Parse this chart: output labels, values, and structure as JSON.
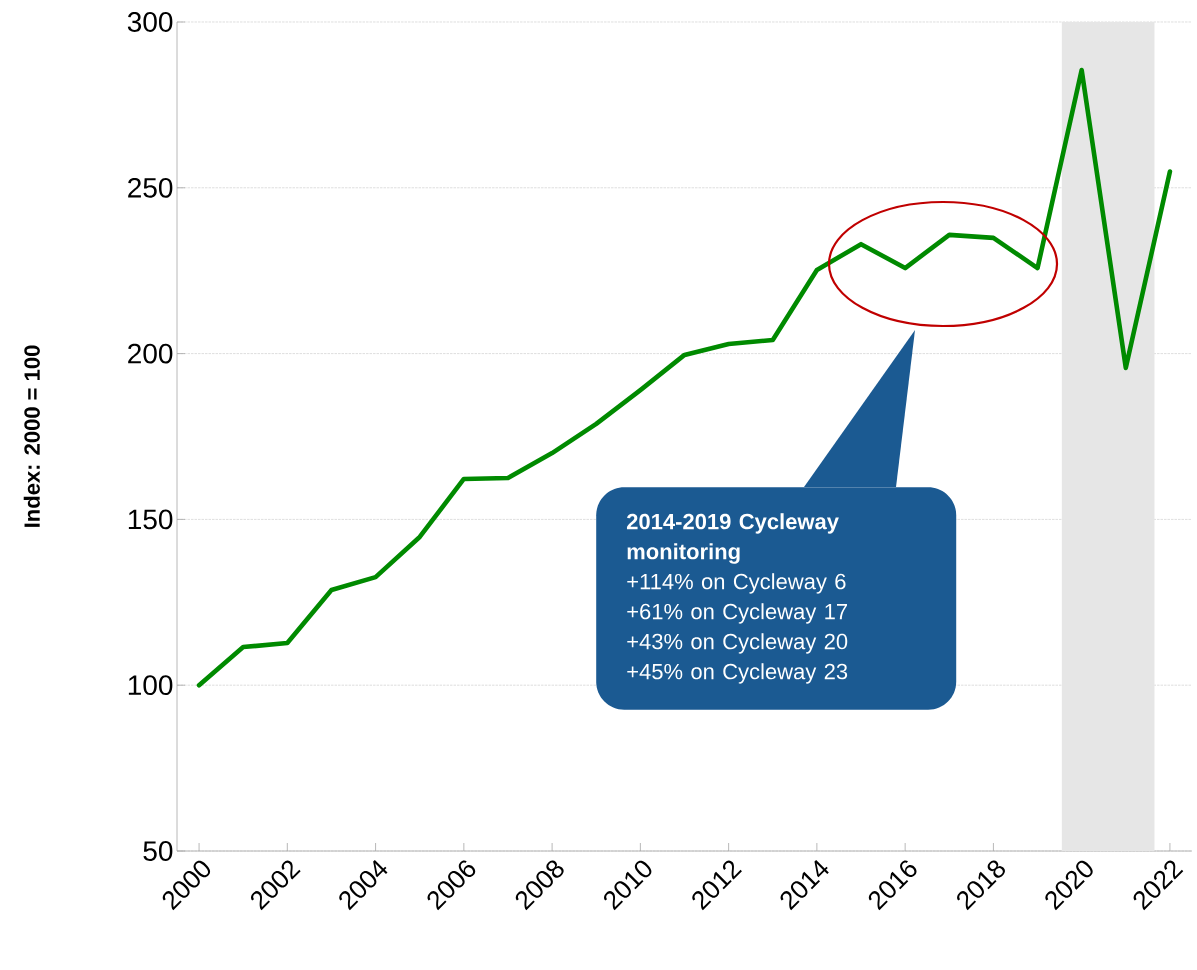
{
  "chart_data": {
    "type": "line",
    "ylabel": "Index: 2000 = 100",
    "x": [
      2000,
      2001,
      2002,
      2003,
      2004,
      2005,
      2006,
      2007,
      2008,
      2009,
      2010,
      2011,
      2012,
      2013,
      2014,
      2015,
      2016,
      2017,
      2018,
      2019,
      2020,
      2021,
      2022
    ],
    "series": [
      {
        "color": "#008a00",
        "values": [
          100,
          111.5,
          112.7,
          128.7,
          132.6,
          144.7,
          162.2,
          162.5,
          170,
          178.8,
          189,
          199.6,
          202.9,
          204.1,
          225.2,
          233,
          225.8,
          235.8,
          234.9,
          225.8,
          285.5,
          195.7,
          254.9
        ]
      }
    ],
    "xlim": [
      1999.5,
      2022.5
    ],
    "ylim": [
      50,
      300
    ],
    "yticks": [
      50,
      100,
      150,
      200,
      250,
      300
    ],
    "xticks": [
      2000,
      2002,
      2004,
      2006,
      2008,
      2010,
      2012,
      2014,
      2016,
      2018,
      2020,
      2022
    ],
    "grid": "y",
    "bands": [
      {
        "axis": "x",
        "from": 2019.55,
        "to": 2021.65,
        "color": "#e6e6e6"
      }
    ],
    "annotations": [
      "**2014-2019 Cycleway monitoring**",
      "+114% on Cycleway 6",
      "+61% on Cycleway 17",
      "+43% on Cycleway 20",
      "+45% on Cycleway 23"
    ]
  }
}
